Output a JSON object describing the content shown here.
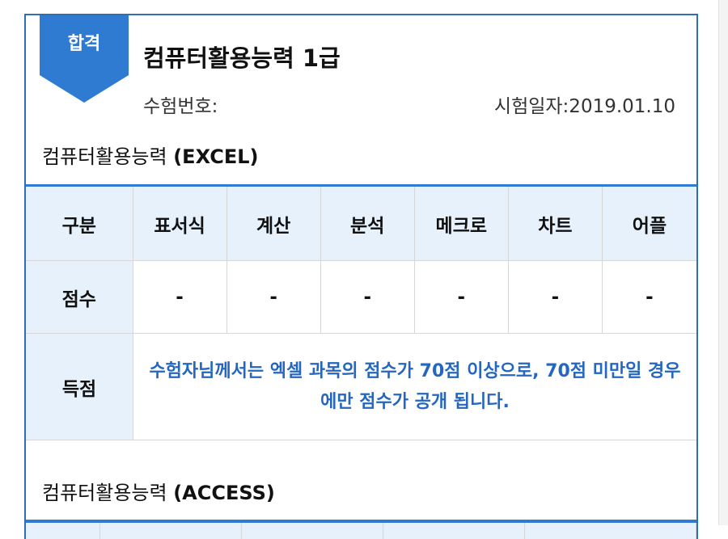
{
  "result": {
    "badge": "합격",
    "exam_name": "컴퓨터활용능력 1급",
    "exam_no_label": "수험번호:",
    "exam_date_label": "시험일자:2019.01.10"
  },
  "sections": {
    "excel": {
      "name": "컴퓨터활용능력",
      "sub": "(EXCEL)"
    },
    "access": {
      "name": "컴퓨터활용능력",
      "sub": "(ACCESS)"
    }
  },
  "table": {
    "header": [
      "구분",
      "표서식",
      "계산",
      "분석",
      "메크로",
      "차트",
      "어플"
    ],
    "score_label": "점수",
    "scores": [
      "-",
      "-",
      "-",
      "-",
      "-",
      "-"
    ],
    "points_label": "득점",
    "notice": "수험자님께서는 엑셀 과목의 점수가 70점 이상으로, 70점 미만일 경우에만 점수가 공개 됩니다."
  },
  "colors": {
    "accent": "#2f7bd1",
    "badge": "#2f7bd1",
    "header_bg": "#e6f1fc",
    "notice_text": "#2466c0"
  }
}
